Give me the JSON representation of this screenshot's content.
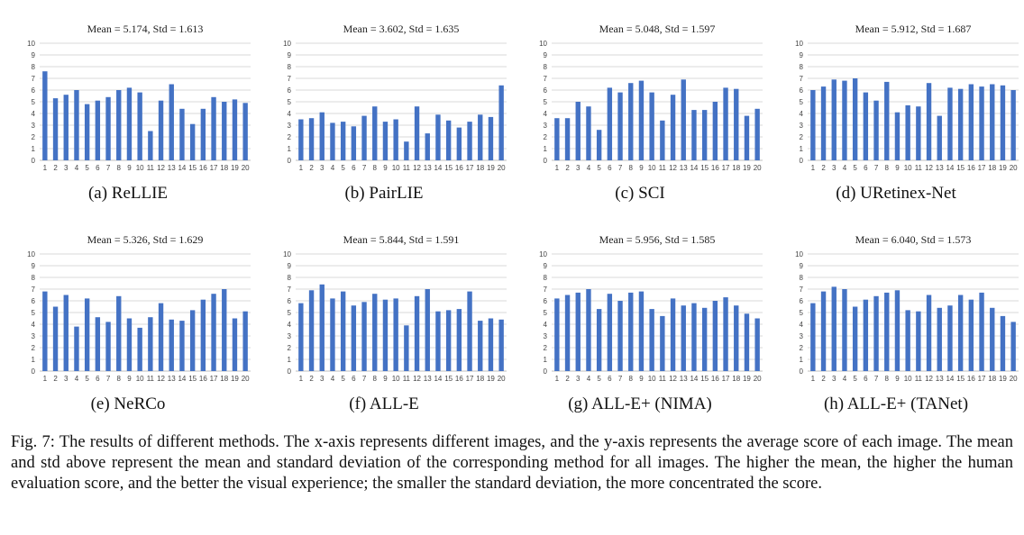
{
  "chart_data": [
    {
      "type": "bar",
      "panel_caption": "(a) ReLLIE",
      "title": "Mean = 5.174, Std = 1.613",
      "categories": [
        "1",
        "2",
        "3",
        "4",
        "5",
        "6",
        "7",
        "8",
        "9",
        "10",
        "11",
        "12",
        "13",
        "14",
        "15",
        "16",
        "17",
        "18",
        "19",
        "20"
      ],
      "values": [
        7.6,
        5.3,
        5.6,
        6.0,
        4.8,
        5.1,
        5.4,
        6.0,
        6.2,
        5.8,
        2.5,
        5.1,
        6.5,
        4.4,
        3.1,
        4.4,
        5.4,
        5.0,
        5.2,
        4.9
      ],
      "ylim": [
        0,
        10
      ],
      "yticks": [
        "0",
        "1",
        "2",
        "3",
        "4",
        "5",
        "6",
        "7",
        "8",
        "9",
        "10"
      ],
      "grid": true,
      "color": "#4472c4"
    },
    {
      "type": "bar",
      "panel_caption": "(b) PairLIE",
      "title": "Mean = 3.602, Std = 1.635",
      "categories": [
        "1",
        "2",
        "3",
        "4",
        "5",
        "6",
        "7",
        "8",
        "9",
        "10",
        "11",
        "12",
        "13",
        "14",
        "15",
        "16",
        "17",
        "18",
        "19",
        "20"
      ],
      "values": [
        3.5,
        3.6,
        4.1,
        3.2,
        3.3,
        2.9,
        3.8,
        4.6,
        3.3,
        3.5,
        1.6,
        4.6,
        2.3,
        3.9,
        3.4,
        2.8,
        3.3,
        3.9,
        3.7,
        6.4
      ],
      "ylim": [
        0,
        10
      ],
      "yticks": [
        "0",
        "1",
        "2",
        "3",
        "4",
        "5",
        "6",
        "7",
        "8",
        "9",
        "10"
      ],
      "grid": true,
      "color": "#4472c4"
    },
    {
      "type": "bar",
      "panel_caption": "(c) SCI",
      "title": "Mean = 5.048, Std = 1.597",
      "categories": [
        "1",
        "2",
        "3",
        "4",
        "5",
        "6",
        "7",
        "8",
        "9",
        "10",
        "11",
        "12",
        "13",
        "14",
        "15",
        "16",
        "17",
        "18",
        "19",
        "20"
      ],
      "values": [
        3.6,
        3.6,
        5.0,
        4.6,
        2.6,
        6.2,
        5.8,
        6.6,
        6.8,
        5.8,
        3.4,
        5.6,
        6.9,
        4.3,
        4.3,
        5.0,
        6.2,
        6.1,
        3.8,
        4.4
      ],
      "ylim": [
        0,
        10
      ],
      "yticks": [
        "0",
        "1",
        "2",
        "3",
        "4",
        "5",
        "6",
        "7",
        "8",
        "9",
        "10"
      ],
      "grid": true,
      "color": "#4472c4"
    },
    {
      "type": "bar",
      "panel_caption": "(d) URetinex-Net",
      "title": "Mean =  5.912, Std = 1.687",
      "categories": [
        "1",
        "2",
        "3",
        "4",
        "5",
        "6",
        "7",
        "8",
        "9",
        "10",
        "11",
        "12",
        "13",
        "14",
        "15",
        "16",
        "17",
        "18",
        "19",
        "20"
      ],
      "values": [
        6.0,
        6.3,
        6.9,
        6.8,
        7.0,
        5.8,
        5.1,
        6.7,
        4.1,
        4.7,
        4.6,
        6.6,
        3.8,
        6.2,
        6.1,
        6.5,
        6.3,
        6.5,
        6.4,
        6.0
      ],
      "ylim": [
        0,
        10
      ],
      "yticks": [
        "0",
        "1",
        "2",
        "3",
        "4",
        "5",
        "6",
        "7",
        "8",
        "9",
        "10"
      ],
      "grid": true,
      "color": "#4472c4"
    },
    {
      "type": "bar",
      "panel_caption": "(e) NeRCo",
      "title": "Mean = 5.326, Std = 1.629",
      "categories": [
        "1",
        "2",
        "3",
        "4",
        "5",
        "6",
        "7",
        "8",
        "9",
        "10",
        "11",
        "12",
        "13",
        "14",
        "15",
        "16",
        "17",
        "18",
        "19",
        "20"
      ],
      "values": [
        6.8,
        5.5,
        6.5,
        3.8,
        6.2,
        4.6,
        4.2,
        6.4,
        4.5,
        3.7,
        4.6,
        5.8,
        4.4,
        4.3,
        5.2,
        6.1,
        6.6,
        7.0,
        4.5,
        5.1
      ],
      "ylim": [
        0,
        10
      ],
      "yticks": [
        "0",
        "1",
        "2",
        "3",
        "4",
        "5",
        "6",
        "7",
        "8",
        "9",
        "10"
      ],
      "grid": true,
      "color": "#4472c4"
    },
    {
      "type": "bar",
      "panel_caption": "(f) ALL-E",
      "title": "Mean = 5.844, Std = 1.591",
      "categories": [
        "1",
        "2",
        "3",
        "4",
        "5",
        "6",
        "7",
        "8",
        "9",
        "10",
        "11",
        "12",
        "13",
        "14",
        "15",
        "16",
        "17",
        "18",
        "19",
        "20"
      ],
      "values": [
        5.8,
        6.9,
        7.4,
        6.2,
        6.8,
        5.6,
        5.9,
        6.6,
        6.1,
        6.2,
        3.9,
        6.4,
        7.0,
        5.1,
        5.2,
        5.3,
        6.8,
        4.3,
        4.5,
        4.4
      ],
      "ylim": [
        0,
        10
      ],
      "yticks": [
        "0",
        "1",
        "2",
        "3",
        "4",
        "5",
        "6",
        "7",
        "8",
        "9",
        "10"
      ],
      "grid": true,
      "color": "#4472c4"
    },
    {
      "type": "bar",
      "panel_caption": "(g) ALL-E+ (NIMA)",
      "title": "Mean = 5.956, Std = 1.585",
      "categories": [
        "1",
        "2",
        "3",
        "4",
        "5",
        "6",
        "7",
        "8",
        "9",
        "10",
        "11",
        "12",
        "13",
        "14",
        "15",
        "16",
        "17",
        "18",
        "19",
        "20"
      ],
      "values": [
        6.2,
        6.5,
        6.7,
        7.0,
        5.3,
        6.6,
        6.0,
        6.7,
        6.8,
        5.3,
        4.7,
        6.2,
        5.6,
        5.8,
        5.4,
        6.0,
        6.3,
        5.6,
        4.9,
        4.5
      ],
      "ylim": [
        0,
        10
      ],
      "yticks": [
        "0",
        "1",
        "2",
        "3",
        "4",
        "5",
        "6",
        "7",
        "8",
        "9",
        "10"
      ],
      "grid": true,
      "color": "#4472c4"
    },
    {
      "type": "bar",
      "panel_caption": "(h) ALL-E+ (TANet)",
      "title": "Mean =  6.040, Std = 1.573",
      "categories": [
        "1",
        "2",
        "3",
        "4",
        "5",
        "6",
        "7",
        "8",
        "9",
        "10",
        "11",
        "12",
        "13",
        "14",
        "15",
        "16",
        "17",
        "18",
        "19",
        "20"
      ],
      "values": [
        5.8,
        6.8,
        7.2,
        7.0,
        5.5,
        6.1,
        6.4,
        6.7,
        6.9,
        5.2,
        5.1,
        6.5,
        5.4,
        5.6,
        6.5,
        6.1,
        6.7,
        5.4,
        4.7,
        4.2
      ],
      "ylim": [
        0,
        10
      ],
      "yticks": [
        "0",
        "1",
        "2",
        "3",
        "4",
        "5",
        "6",
        "7",
        "8",
        "9",
        "10"
      ],
      "grid": true,
      "color": "#4472c4"
    }
  ],
  "caption": "Fig. 7: The results of different methods. The x-axis represents different images, and the y-axis represents the average score of each image. The mean and std above represent the mean and standard deviation of the corresponding method for all images. The higher the mean, the higher the human evaluation score, and the better the visual experience; the smaller the standard deviation, the more concentrated the score."
}
